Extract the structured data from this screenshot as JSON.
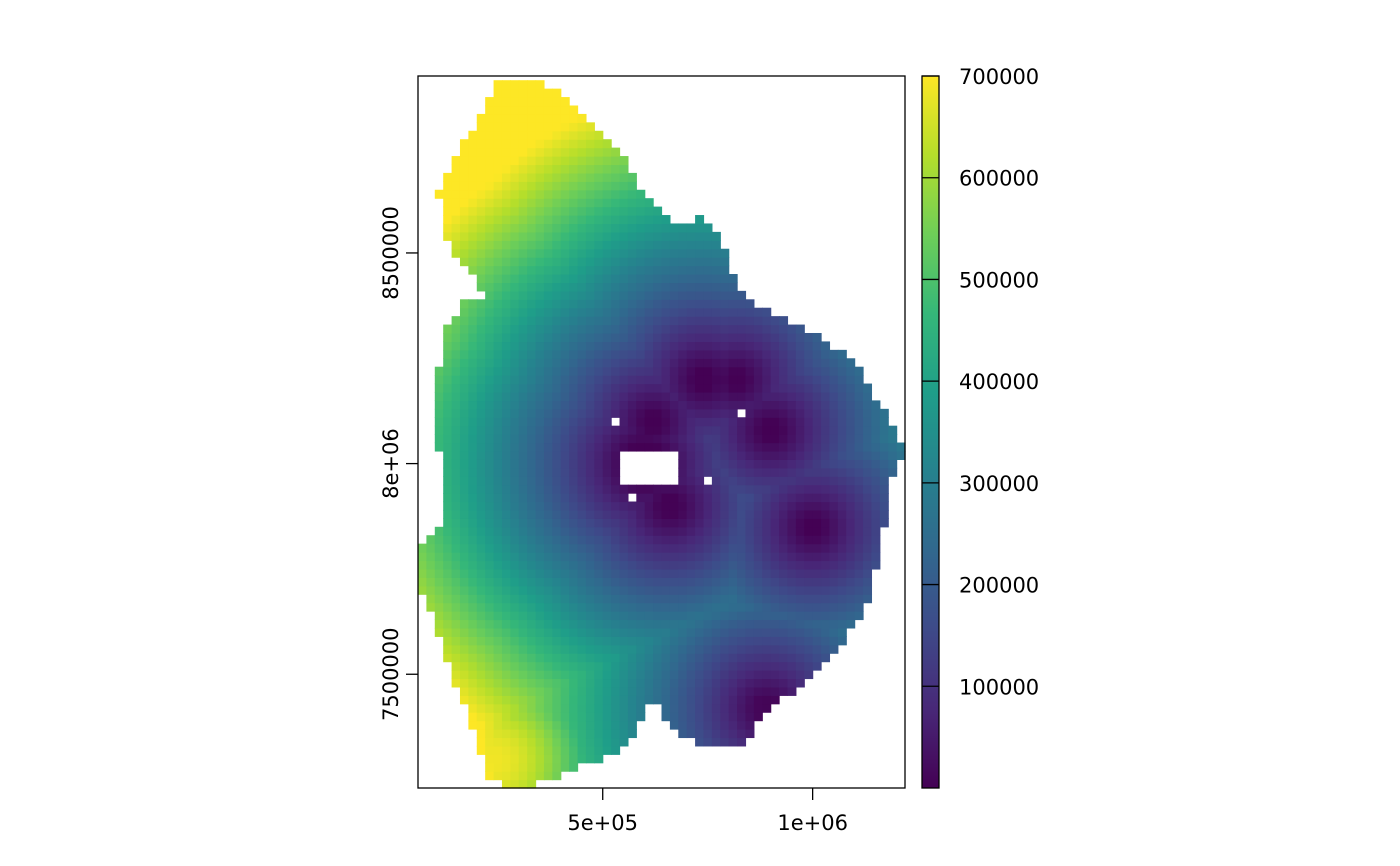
{
  "chart_data": {
    "type": "heatmap",
    "title": "",
    "xlabel": "",
    "ylabel": "",
    "xlim": [
      60000,
      1220000
    ],
    "ylim": [
      7230000,
      8920000
    ],
    "x_ticks": [
      {
        "value": 500000,
        "label": "5e+05"
      },
      {
        "value": 1000000,
        "label": "1e+06"
      }
    ],
    "y_ticks": [
      {
        "value": 7500000,
        "label": "7500000"
      },
      {
        "value": 8000000,
        "label": "8e+06"
      },
      {
        "value": 8500000,
        "label": "8500000"
      }
    ],
    "colorbar": {
      "range": [
        0,
        700000
      ],
      "ticks": [
        {
          "value": 100000,
          "label": "100000"
        },
        {
          "value": 200000,
          "label": "200000"
        },
        {
          "value": 300000,
          "label": "300000"
        },
        {
          "value": 400000,
          "label": "400000"
        },
        {
          "value": 500000,
          "label": "500000"
        },
        {
          "value": 600000,
          "label": "600000"
        },
        {
          "value": 700000,
          "label": "700000"
        }
      ],
      "palette": "viridis",
      "colors": [
        "#440154",
        "#482878",
        "#3e4a89",
        "#31688e",
        "#26828e",
        "#1f9e89",
        "#35b779",
        "#6ece58",
        "#b5de2b",
        "#fde725"
      ]
    },
    "cell_size": 20000,
    "boundary": [
      [
        260000,
        8920000
      ],
      [
        340000,
        8920000
      ],
      [
        400000,
        8880000
      ],
      [
        450000,
        8840000
      ],
      [
        480000,
        8800000
      ],
      [
        520000,
        8760000
      ],
      [
        560000,
        8710000
      ],
      [
        590000,
        8660000
      ],
      [
        630000,
        8610000
      ],
      [
        660000,
        8570000
      ],
      [
        710000,
        8560000
      ],
      [
        740000,
        8590000
      ],
      [
        760000,
        8560000
      ],
      [
        790000,
        8520000
      ],
      [
        820000,
        8420000
      ],
      [
        880000,
        8370000
      ],
      [
        960000,
        8330000
      ],
      [
        1050000,
        8280000
      ],
      [
        1110000,
        8230000
      ],
      [
        1150000,
        8150000
      ],
      [
        1190000,
        8100000
      ],
      [
        1220000,
        8040000
      ],
      [
        1190000,
        7960000
      ],
      [
        1170000,
        7840000
      ],
      [
        1150000,
        7740000
      ],
      [
        1120000,
        7640000
      ],
      [
        1060000,
        7560000
      ],
      [
        990000,
        7480000
      ],
      [
        920000,
        7440000
      ],
      [
        860000,
        7380000
      ],
      [
        840000,
        7330000
      ],
      [
        780000,
        7320000
      ],
      [
        720000,
        7340000
      ],
      [
        660000,
        7380000
      ],
      [
        640000,
        7420000
      ],
      [
        610000,
        7440000
      ],
      [
        580000,
        7370000
      ],
      [
        540000,
        7320000
      ],
      [
        480000,
        7290000
      ],
      [
        420000,
        7270000
      ],
      [
        350000,
        7240000
      ],
      [
        270000,
        7230000
      ],
      [
        230000,
        7260000
      ],
      [
        210000,
        7310000
      ],
      [
        190000,
        7380000
      ],
      [
        160000,
        7450000
      ],
      [
        130000,
        7540000
      ],
      [
        100000,
        7620000
      ],
      [
        80000,
        7680000
      ],
      [
        60000,
        7720000
      ],
      [
        70000,
        7800000
      ],
      [
        110000,
        7840000
      ],
      [
        120000,
        7940000
      ],
      [
        110000,
        8030000
      ],
      [
        100000,
        8140000
      ],
      [
        110000,
        8230000
      ],
      [
        130000,
        8320000
      ],
      [
        170000,
        8380000
      ],
      [
        220000,
        8400000
      ],
      [
        200000,
        8440000
      ],
      [
        160000,
        8470000
      ],
      [
        120000,
        8550000
      ],
      [
        110000,
        8640000
      ],
      [
        140000,
        8720000
      ],
      [
        180000,
        8780000
      ],
      [
        210000,
        8830000
      ],
      [
        240000,
        8880000
      ]
    ],
    "holes": [
      {
        "x": [
          540000,
          680000
        ],
        "y": [
          7950000,
          8040000
        ]
      },
      {
        "x": [
          520000,
          540000
        ],
        "y": [
          8100000,
          8120000
        ]
      },
      {
        "x": [
          820000,
          840000
        ],
        "y": [
          8120000,
          8140000
        ]
      },
      {
        "x": [
          740000,
          760000
        ],
        "y": [
          7960000,
          7980000
        ]
      },
      {
        "x": [
          560000,
          580000
        ],
        "y": [
          7920000,
          7940000
        ]
      }
    ],
    "low_centers": [
      {
        "x": 600000,
        "y": 8000000,
        "w": 160000
      },
      {
        "x": 660000,
        "y": 7900000,
        "w": 70000
      },
      {
        "x": 740000,
        "y": 8200000,
        "w": 75000
      },
      {
        "x": 900000,
        "y": 8080000,
        "w": 70000
      },
      {
        "x": 1000000,
        "y": 7850000,
        "w": 65000
      },
      {
        "x": 890000,
        "y": 7420000,
        "w": 60000
      },
      {
        "x": 620000,
        "y": 8100000,
        "w": 65000
      },
      {
        "x": 820000,
        "y": 8200000,
        "w": 60000
      }
    ],
    "high_areas": [
      {
        "x": 140000,
        "y": 8680000,
        "peak": 680000,
        "w": 90000
      },
      {
        "x": 250000,
        "y": 7300000,
        "peak": 690000,
        "w": 100000
      }
    ]
  }
}
